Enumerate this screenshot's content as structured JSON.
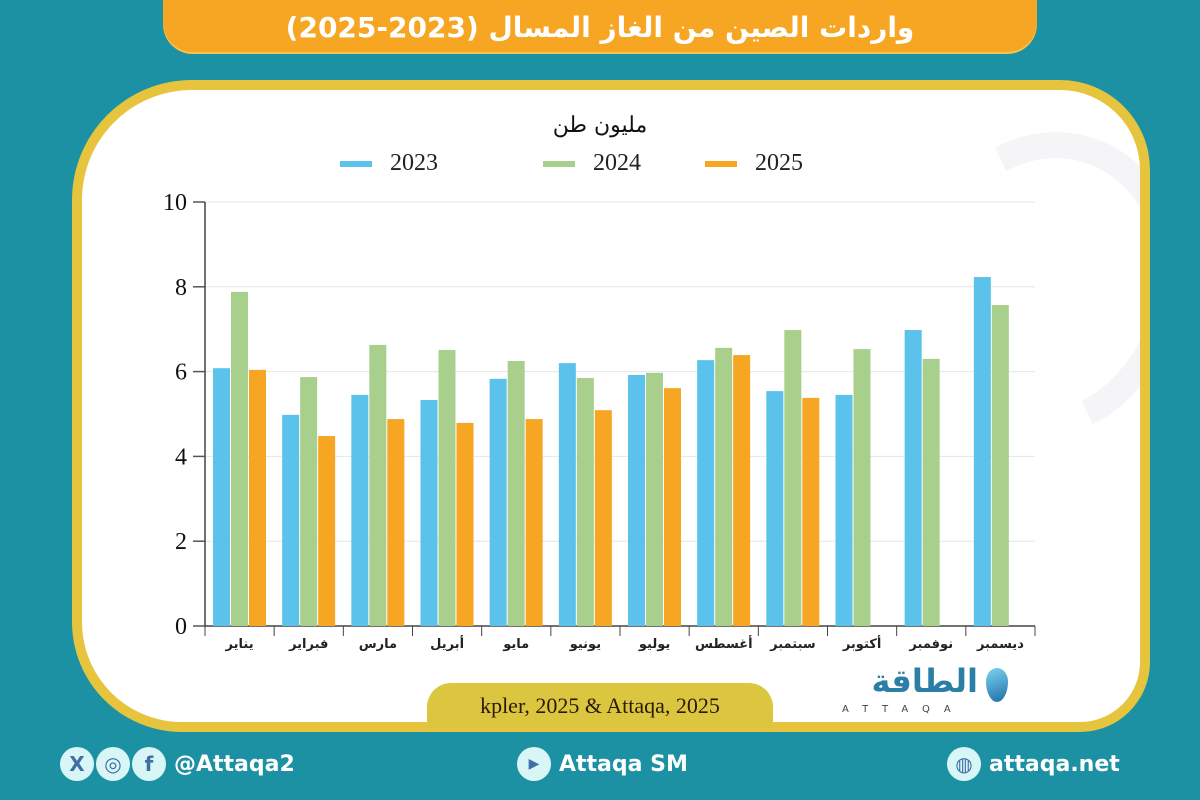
{
  "header": {
    "title": "واردات الصين من الغاز المسال (2023-2025)"
  },
  "colors": {
    "background": "#1b91a3",
    "title_bar": "#f6a623",
    "card_border": "#e6c43e",
    "series_2023": "#5bc2ec",
    "series_2024": "#a9cf8c",
    "series_2025": "#f6a623"
  },
  "chart_data": {
    "type": "bar",
    "title": "واردات الصين من الغاز المسال (2023-2025)",
    "ylabel": "مليون طن",
    "xlabel": "",
    "ylim": [
      0,
      10
    ],
    "yticks": [
      "0",
      "2",
      "4",
      "6",
      "8",
      "10"
    ],
    "grid": true,
    "legend_position": "top",
    "categories": [
      "يناير",
      "فبراير",
      "مارس",
      "أبريل",
      "مايو",
      "يونيو",
      "يوليو",
      "أغسطس",
      "سبتمبر",
      "أكتوبر",
      "نوفمبر",
      "ديسمبر"
    ],
    "series": [
      {
        "name": "2023",
        "color": "#5bc2ec",
        "values": [
          6.08,
          4.98,
          5.45,
          5.33,
          5.83,
          6.2,
          5.92,
          6.27,
          5.54,
          5.45,
          6.98,
          8.23
        ]
      },
      {
        "name": "2024",
        "color": "#a9cf8c",
        "values": [
          7.88,
          5.87,
          6.63,
          6.51,
          6.25,
          5.85,
          5.97,
          6.56,
          6.98,
          6.53,
          6.3,
          7.57
        ]
      },
      {
        "name": "2025",
        "color": "#f6a623",
        "values": [
          6.04,
          4.48,
          4.88,
          4.79,
          4.88,
          5.09,
          5.61,
          6.39,
          5.38,
          null,
          null,
          null
        ]
      }
    ]
  },
  "source": {
    "text": "kpler, 2025 & Attaqa, 2025"
  },
  "logo": {
    "arabic": "الطاقة",
    "english": "ATTAQA"
  },
  "footer": {
    "social_handle": "@Attaqa2",
    "youtube": "Attaqa SM",
    "website": "attaqa.net",
    "icons": {
      "x": "X",
      "instagram": "◎",
      "facebook": "f",
      "youtube": "▶",
      "globe": "◍"
    }
  }
}
